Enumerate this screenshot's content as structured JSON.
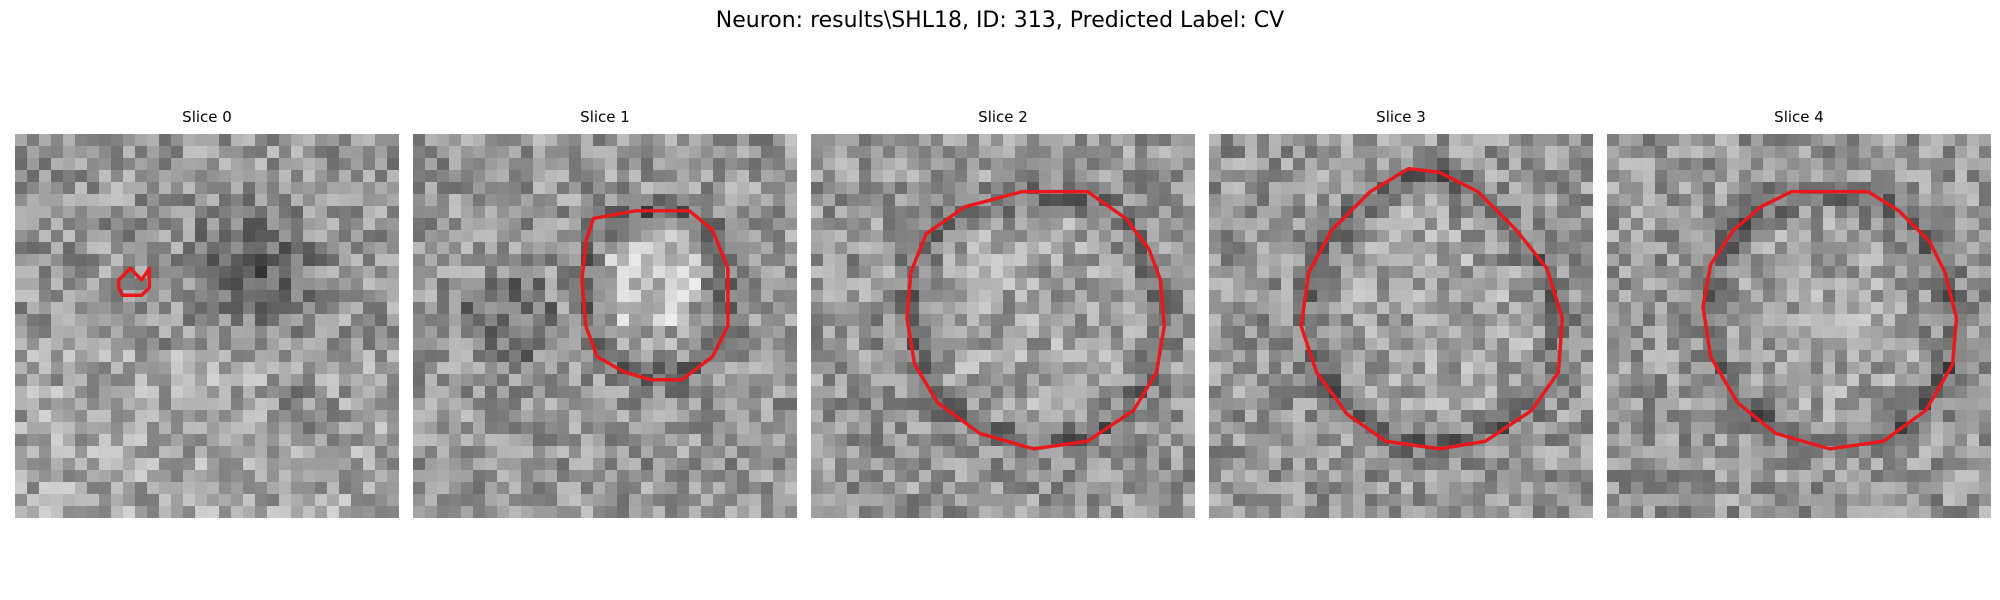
{
  "figure": {
    "title": "Neuron: results\\SHL18, ID: 313, Predicted Label: CV"
  },
  "colors": {
    "outline": "#e8191c"
  },
  "panels": [
    {
      "title": "Slice 0",
      "outline": [
        [
          27,
          38
        ],
        [
          30,
          35
        ],
        [
          33,
          38
        ],
        [
          35,
          35
        ],
        [
          35,
          40
        ],
        [
          33,
          42
        ],
        [
          28,
          42
        ],
        [
          27,
          40
        ]
      ]
    },
    {
      "title": "Slice 1",
      "outline": [
        [
          47,
          22
        ],
        [
          58,
          20
        ],
        [
          72,
          20
        ],
        [
          78,
          25
        ],
        [
          82,
          35
        ],
        [
          82,
          50
        ],
        [
          78,
          58
        ],
        [
          70,
          64
        ],
        [
          62,
          64
        ],
        [
          55,
          62
        ],
        [
          48,
          58
        ],
        [
          45,
          50
        ],
        [
          44,
          38
        ],
        [
          45,
          28
        ]
      ]
    },
    {
      "title": "Slice 2",
      "outline": [
        [
          55,
          15
        ],
        [
          72,
          15
        ],
        [
          82,
          22
        ],
        [
          88,
          30
        ],
        [
          91,
          38
        ],
        [
          92,
          50
        ],
        [
          90,
          62
        ],
        [
          84,
          72
        ],
        [
          72,
          80
        ],
        [
          58,
          82
        ],
        [
          44,
          78
        ],
        [
          33,
          70
        ],
        [
          27,
          60
        ],
        [
          25,
          48
        ],
        [
          26,
          36
        ],
        [
          30,
          26
        ],
        [
          40,
          19
        ]
      ]
    },
    {
      "title": "Slice 3",
      "outline": [
        [
          52,
          9
        ],
        [
          60,
          10
        ],
        [
          70,
          15
        ],
        [
          80,
          25
        ],
        [
          88,
          35
        ],
        [
          92,
          48
        ],
        [
          91,
          62
        ],
        [
          84,
          72
        ],
        [
          72,
          80
        ],
        [
          60,
          82
        ],
        [
          46,
          80
        ],
        [
          36,
          73
        ],
        [
          28,
          62
        ],
        [
          24,
          50
        ],
        [
          26,
          36
        ],
        [
          32,
          25
        ],
        [
          42,
          15
        ]
      ]
    },
    {
      "title": "Slice 4",
      "outline": [
        [
          48,
          15
        ],
        [
          68,
          15
        ],
        [
          76,
          20
        ],
        [
          84,
          28
        ],
        [
          88,
          36
        ],
        [
          91,
          48
        ],
        [
          90,
          60
        ],
        [
          83,
          72
        ],
        [
          72,
          80
        ],
        [
          58,
          82
        ],
        [
          44,
          78
        ],
        [
          34,
          70
        ],
        [
          27,
          58
        ],
        [
          25,
          45
        ],
        [
          27,
          34
        ],
        [
          33,
          25
        ],
        [
          40,
          19
        ]
      ]
    }
  ]
}
